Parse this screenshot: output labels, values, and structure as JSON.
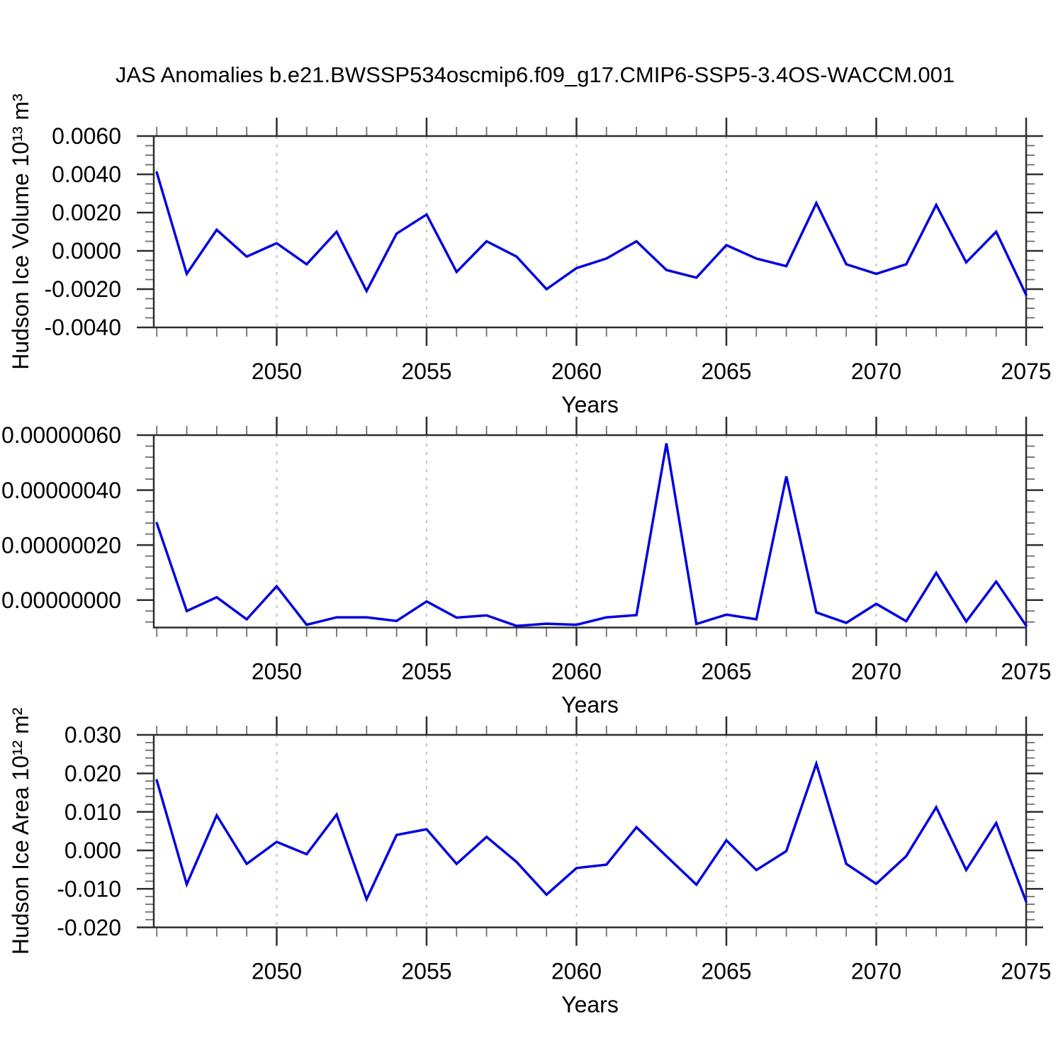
{
  "title": "JAS Anomalies b.e21.BWSSP534oscmip6.f09_g17.CMIP6-SSP5-3.4OS-WACCM.001",
  "colors": {
    "line": "#0202e0",
    "frame": "#2e2e2e",
    "tick_major": "#2e2e2e",
    "tick_minor": "#6e6e6e",
    "grid": "#c0c0c0",
    "text": "#000000"
  },
  "chart_data": [
    {
      "type": "line",
      "ylabel": "Hudson Ice Volume 10¹³ m³",
      "xlabel": "Years",
      "legend": null,
      "grid": "dashed-vertical-at-major-x",
      "x": [
        2046,
        2047,
        2048,
        2049,
        2050,
        2051,
        2052,
        2053,
        2054,
        2055,
        2056,
        2057,
        2058,
        2059,
        2060,
        2061,
        2062,
        2063,
        2064,
        2065,
        2066,
        2067,
        2068,
        2069,
        2070,
        2071,
        2072,
        2073,
        2074,
        2075
      ],
      "values": [
        0.0041,
        -0.0012,
        0.0011,
        -0.0003,
        0.0004,
        -0.0007,
        0.001,
        -0.0021,
        0.0009,
        0.0019,
        -0.0011,
        0.0005,
        -0.0003,
        -0.002,
        -0.0009,
        -0.0004,
        0.0005,
        -0.001,
        -0.0014,
        0.0003,
        -0.0004,
        -0.0008,
        0.0025,
        -0.0007,
        -0.0012,
        -0.0007,
        0.0024,
        -0.0006,
        0.001,
        -0.0023
      ],
      "xlim": [
        2045.9,
        2075
      ],
      "ylim": [
        -0.004,
        0.006
      ],
      "xticks": {
        "major_values": [
          2050,
          2055,
          2060,
          2065,
          2070,
          2075
        ],
        "major_labels": [
          "2050",
          "2055",
          "2060",
          "2065",
          "2070",
          "2075"
        ],
        "minor_step": 1,
        "grid_years": [
          2050,
          2055,
          2060,
          2065,
          2070
        ]
      },
      "yticks": {
        "major_values": [
          0.006,
          0.004,
          0.002,
          0.0,
          -0.002,
          -0.004
        ],
        "major_labels": [
          "0.0060",
          "0.0040",
          "0.0020",
          "0.0000",
          "-0.0020",
          "-0.0040"
        ],
        "minor_step": 0.0005
      }
    },
    {
      "type": "line",
      "ylabel": "",
      "xlabel": "Years",
      "legend": null,
      "grid": "dashed-vertical-at-major-x",
      "x": [
        2046,
        2047,
        2048,
        2049,
        2050,
        2051,
        2052,
        2053,
        2054,
        2055,
        2056,
        2057,
        2058,
        2059,
        2060,
        2061,
        2062,
        2063,
        2064,
        2065,
        2066,
        2067,
        2068,
        2069,
        2070,
        2071,
        2072,
        2073,
        2074,
        2075
      ],
      "values": [
        2.8e-07,
        -4e-08,
        1e-08,
        -7e-08,
        5e-08,
        -9e-08,
        -6.3e-08,
        -6.3e-08,
        -7.6e-08,
        -5e-09,
        -6.4e-08,
        -5.6e-08,
        -9.4e-08,
        -8.6e-08,
        -9e-08,
        -6.3e-08,
        -5.5e-08,
        5.7e-07,
        -8.7e-08,
        -5.3e-08,
        -7e-08,
        4.5e-07,
        -4.5e-08,
        -8.3e-08,
        -1.4e-08,
        -7.7e-08,
        9.9e-08,
        -7.8e-08,
        6.7e-08,
        -9.3e-08
      ],
      "xlim": [
        2045.9,
        2075
      ],
      "ylim": [
        -1e-07,
        6e-07
      ],
      "xticks": {
        "major_values": [
          2050,
          2055,
          2060,
          2065,
          2070,
          2075
        ],
        "major_labels": [
          "2050",
          "2055",
          "2060",
          "2065",
          "2070",
          "2075"
        ],
        "minor_step": 1,
        "grid_years": [
          2050,
          2055,
          2060,
          2065,
          2070
        ]
      },
      "yticks": {
        "major_values": [
          6e-07,
          4e-07,
          2e-07,
          0.0
        ],
        "major_labels": [
          "0.00000060",
          "0.00000040",
          "0.00000020",
          "0.00000000"
        ],
        "minor_step": 4e-08
      }
    },
    {
      "type": "line",
      "ylabel": "Hudson Ice Area 10¹² m²",
      "xlabel": "Years",
      "legend": null,
      "grid": "dashed-vertical-at-major-x",
      "x": [
        2046,
        2047,
        2048,
        2049,
        2050,
        2051,
        2052,
        2053,
        2054,
        2055,
        2056,
        2057,
        2058,
        2059,
        2060,
        2061,
        2062,
        2063,
        2064,
        2065,
        2066,
        2067,
        2068,
        2069,
        2070,
        2071,
        2072,
        2073,
        2074,
        2075
      ],
      "values": [
        0.0182,
        -0.0088,
        0.0091,
        -0.0035,
        0.0022,
        -0.001,
        0.0093,
        -0.0127,
        0.004,
        0.0055,
        -0.0035,
        0.0035,
        -0.003,
        -0.0115,
        -0.0046,
        -0.0037,
        0.006,
        -0.0015,
        -0.0089,
        0.0026,
        -0.0051,
        -0.0002,
        0.0225,
        -0.0035,
        -0.0087,
        -0.0015,
        0.0112,
        -0.0051,
        0.0071,
        -0.0133
      ],
      "xlim": [
        2045.9,
        2075
      ],
      "ylim": [
        -0.02,
        0.03
      ],
      "xticks": {
        "major_values": [
          2050,
          2055,
          2060,
          2065,
          2070,
          2075
        ],
        "major_labels": [
          "2050",
          "2055",
          "2060",
          "2065",
          "2070",
          "2075"
        ],
        "minor_step": 1,
        "grid_years": [
          2050,
          2055,
          2060,
          2065,
          2070
        ]
      },
      "yticks": {
        "major_values": [
          0.03,
          0.02,
          0.01,
          0.0,
          -0.01,
          -0.02
        ],
        "major_labels": [
          "0.030",
          "0.020",
          "0.010",
          "0.000",
          "-0.010",
          "-0.020"
        ],
        "minor_step": 0.002
      }
    }
  ]
}
